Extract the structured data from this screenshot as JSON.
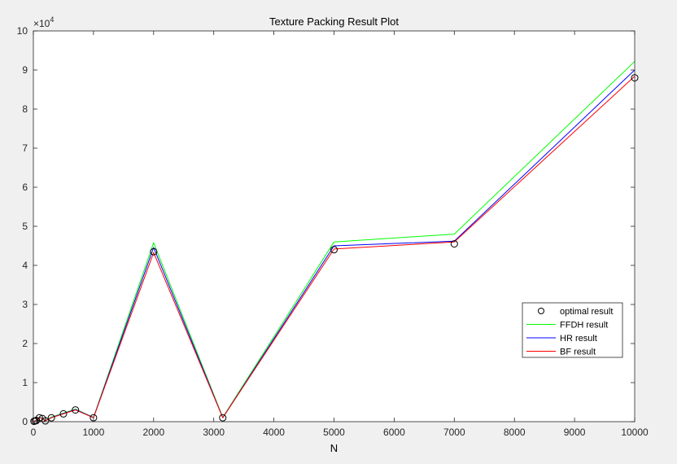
{
  "chart_data": {
    "type": "line",
    "title": "Texture Packing Result Plot",
    "xlabel": "N",
    "ylabel": "",
    "y_multiplier": "×10",
    "y_exponent": "4",
    "xlim": [
      0,
      10000
    ],
    "ylim": [
      0,
      100000
    ],
    "x_ticks": [
      0,
      1000,
      2000,
      3000,
      4000,
      5000,
      6000,
      7000,
      8000,
      9000,
      10000
    ],
    "x_tick_labels": [
      "0",
      "1000",
      "2000",
      "3000",
      "4000",
      "5000",
      "6000",
      "7000",
      "8000",
      "9000",
      "10000"
    ],
    "y_ticks": [
      0,
      10000,
      20000,
      30000,
      40000,
      50000,
      60000,
      70000,
      80000,
      90000,
      100000
    ],
    "y_tick_labels": [
      "0",
      "1",
      "2",
      "3",
      "4",
      "5",
      "6",
      "7",
      "8",
      "9",
      "10"
    ],
    "grid": false,
    "legend_position": "lower-right",
    "x": [
      10,
      30,
      50,
      100,
      150,
      200,
      300,
      500,
      700,
      1000,
      2000,
      3150,
      5000,
      7000,
      10000
    ],
    "series": [
      {
        "name": "optimal result",
        "marker": "circle",
        "line": false,
        "color": "#000000",
        "values": [
          100,
          200,
          300,
          1000,
          800,
          200,
          1000,
          2000,
          3000,
          1000,
          43500,
          1000,
          44000,
          45500,
          88000
        ]
      },
      {
        "name": "FFDH result",
        "marker": "none",
        "line": true,
        "color": "#00ff00",
        "values": [
          120,
          250,
          350,
          1150,
          900,
          250,
          1150,
          2200,
          3200,
          1100,
          45800,
          1100,
          46000,
          48000,
          92200
        ]
      },
      {
        "name": "HR result",
        "marker": "none",
        "line": true,
        "color": "#0000ff",
        "values": [
          110,
          220,
          320,
          1080,
          850,
          220,
          1050,
          2100,
          3100,
          1050,
          44600,
          1000,
          45000,
          46200,
          90000
        ]
      },
      {
        "name": "BF result",
        "marker": "none",
        "line": true,
        "color": "#ff0000",
        "values": [
          100,
          200,
          300,
          1020,
          820,
          210,
          1000,
          2000,
          3000,
          1000,
          43300,
          1000,
          44200,
          46000,
          88400
        ]
      }
    ]
  }
}
